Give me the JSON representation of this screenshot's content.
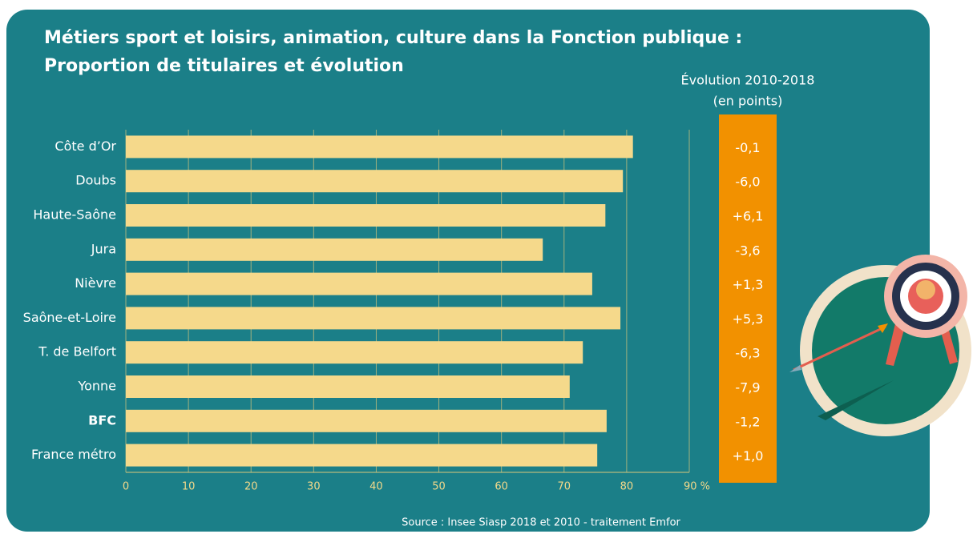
{
  "chart_data": {
    "type": "bar",
    "orientation": "horizontal",
    "title": "Métiers sport et loisirs, animation, culture dans la Fonction publique :",
    "subtitle": "Proportion de titulaires et évolution",
    "categories": [
      "Côte d’Or",
      "Doubs",
      "Haute-Saône",
      "Jura",
      "Nièvre",
      "Saône-et-Loire",
      "T. de Belfort",
      "Yonne",
      "BFC",
      "France métro"
    ],
    "values": [
      81.0,
      79.4,
      76.6,
      66.6,
      74.5,
      79.0,
      73.0,
      70.9,
      76.8,
      75.3
    ],
    "color": "#f5d98b",
    "xlim": [
      0,
      90
    ],
    "xticks": [
      0,
      10,
      20,
      30,
      40,
      50,
      60,
      70,
      80,
      {
        "value": 90,
        "label": "90 %"
      }
    ],
    "grid": true,
    "evolution": {
      "title": "Évolution 2010-2018",
      "subtitle": "(en points)",
      "values": [
        -0.1,
        -6.0,
        6.1,
        -3.6,
        1.3,
        5.3,
        -6.3,
        -7.9,
        -1.2,
        1.0
      ],
      "value_labels": [
        "-0,1",
        "-6,0",
        "+6,1",
        "-3,6",
        "+1,3",
        "+5,3",
        "-6,3",
        "-7,9",
        "-1,2",
        "+1,0"
      ]
    },
    "source": "Source : Insee Siasp 2018 et 2010 - traitement Emfor"
  }
}
